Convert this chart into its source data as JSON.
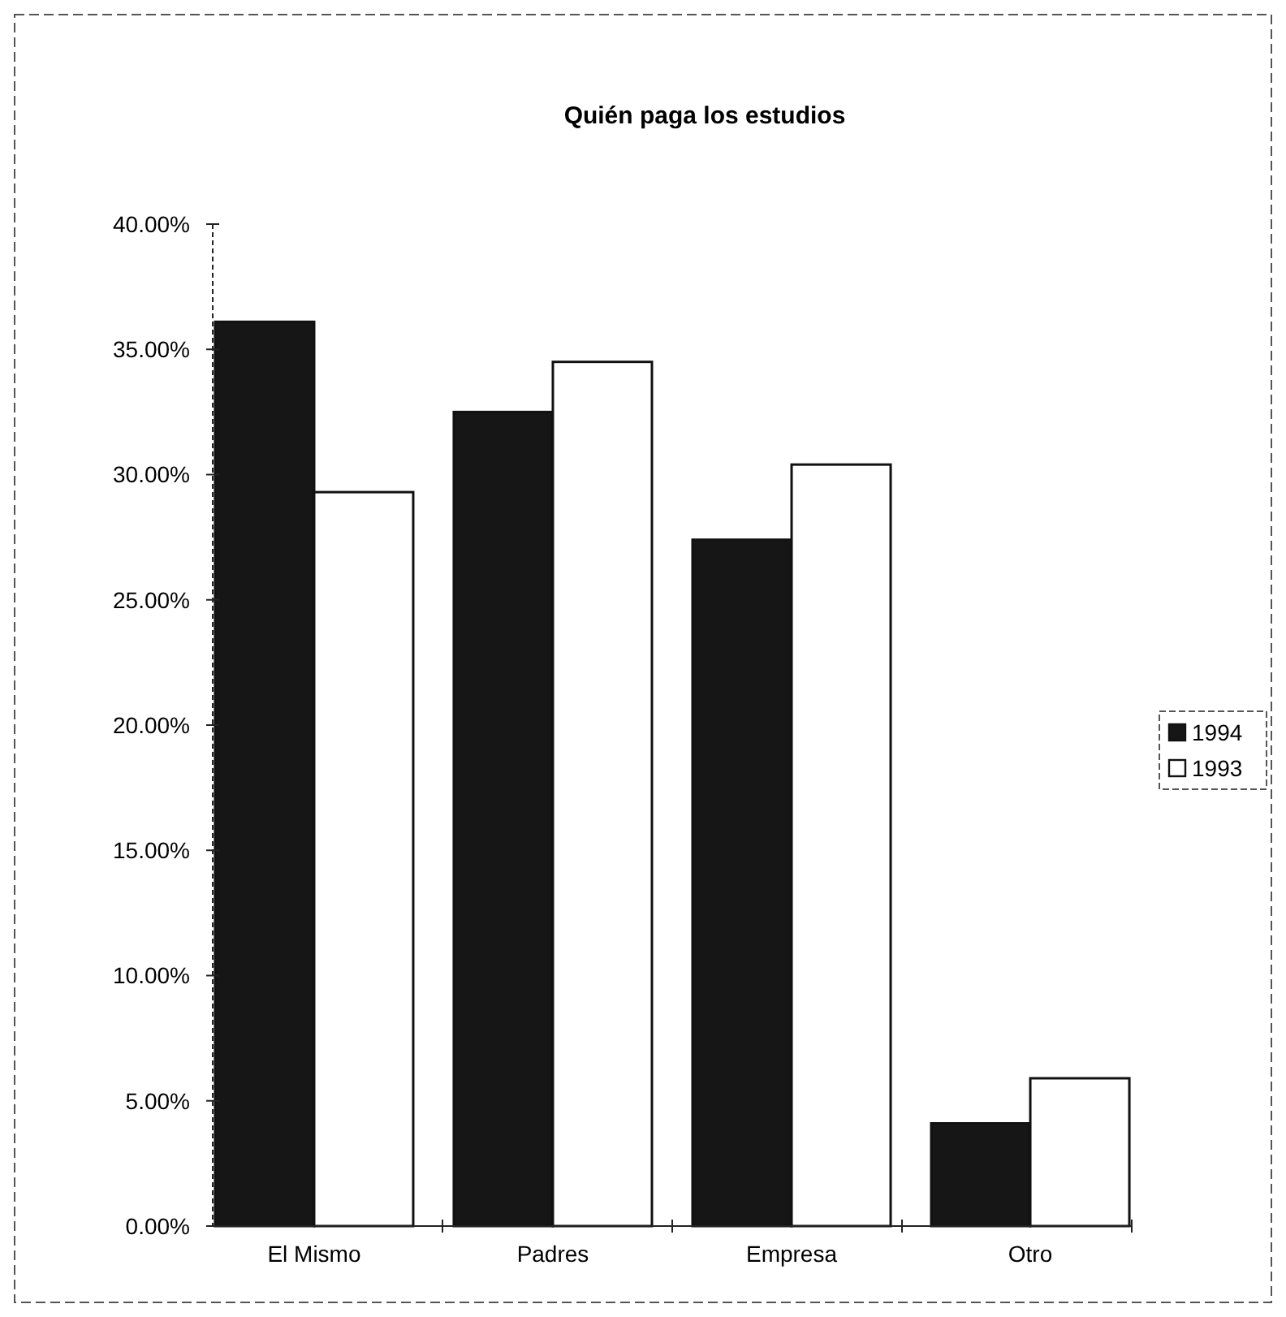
{
  "chart_data": {
    "type": "bar",
    "title": "Quién paga los estudios",
    "categories": [
      "El Mismo",
      "Padres",
      "Empresa",
      "Otro"
    ],
    "series": [
      {
        "name": "1994",
        "color": "#161616",
        "values": [
          36.1,
          32.5,
          27.4,
          4.1
        ]
      },
      {
        "name": "1993",
        "color": "#ffffff",
        "values": [
          29.3,
          34.5,
          30.4,
          5.9
        ]
      }
    ],
    "ylim": [
      0,
      40
    ],
    "yticks": [
      {
        "value": 0,
        "label": "0.00%"
      },
      {
        "value": 5,
        "label": "5.00%"
      },
      {
        "value": 10,
        "label": "10.00%"
      },
      {
        "value": 15,
        "label": "15.00%"
      },
      {
        "value": 20,
        "label": "20.00%"
      },
      {
        "value": 25,
        "label": "25.00%"
      },
      {
        "value": 30,
        "label": "30.00%"
      },
      {
        "value": 35,
        "label": "35.00%"
      },
      {
        "value": 40,
        "label": "40.00%"
      }
    ],
    "grid": false,
    "legend": "right"
  }
}
